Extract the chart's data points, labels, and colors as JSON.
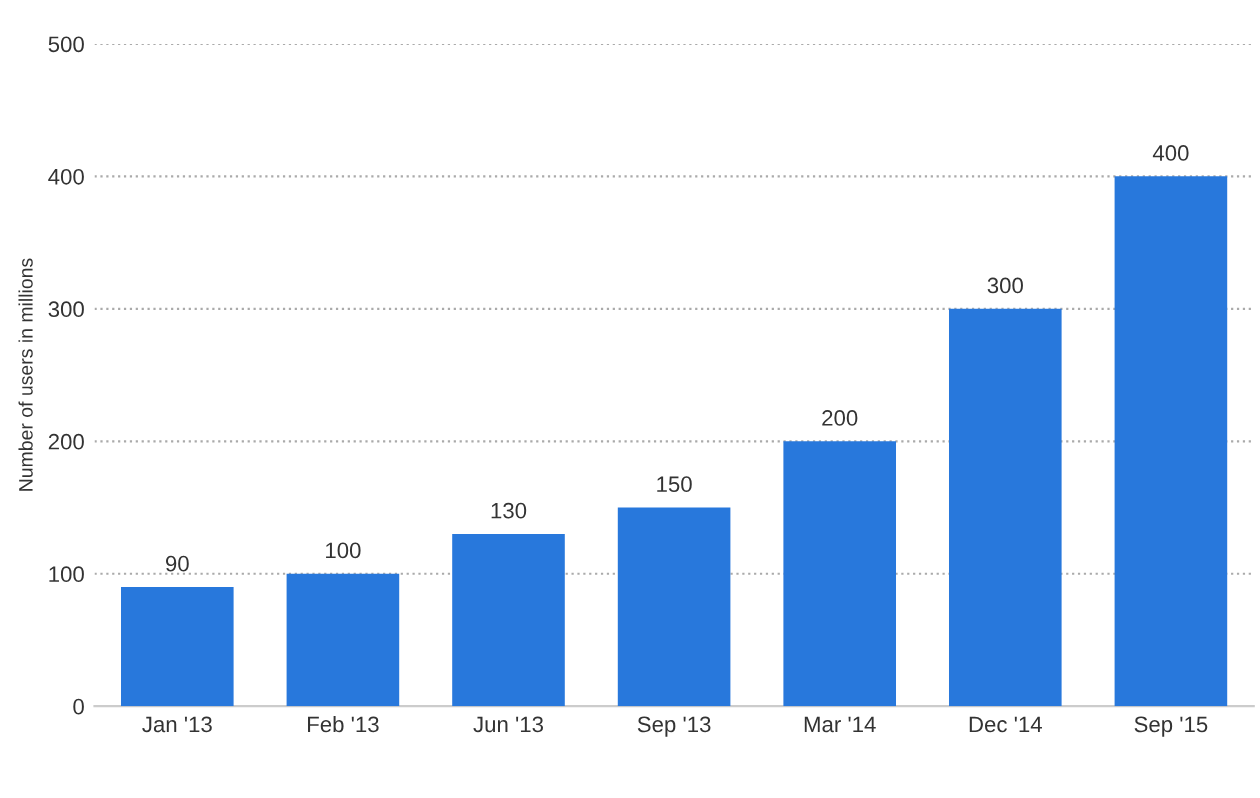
{
  "chart_data": {
    "type": "bar",
    "ylabel": "Number of users in millions",
    "categories": [
      "Jan '13",
      "Feb '13",
      "Jun '13",
      "Sep '13",
      "Mar '14",
      "Dec '14",
      "Sep '15"
    ],
    "values": [
      90,
      100,
      130,
      150,
      200,
      300,
      400
    ],
    "color": "#2878dc",
    "ylim": [
      0,
      500
    ],
    "yticks": [
      0,
      100,
      200,
      300,
      400,
      500
    ],
    "grid": "y",
    "data_labels": true,
    "legend": false
  }
}
